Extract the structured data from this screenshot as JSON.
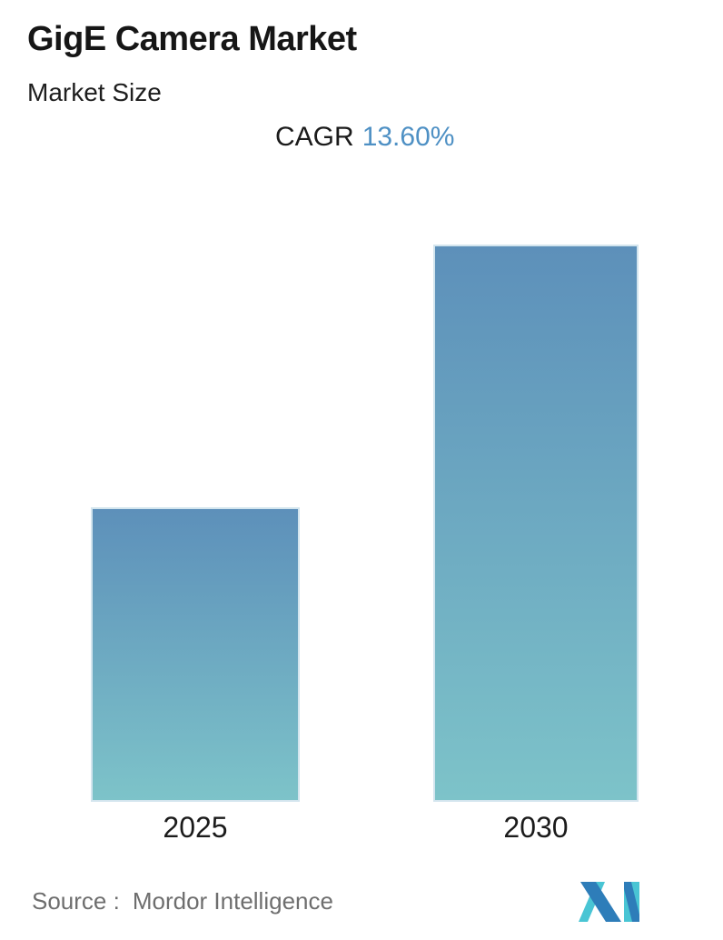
{
  "header": {
    "title": "GigE Camera Market",
    "subtitle": "Market Size",
    "cagr_label": "CAGR",
    "cagr_value": "13.60%"
  },
  "chart_data": {
    "type": "bar",
    "title": "GigE Camera Market - Market Size",
    "categories": [
      "2025",
      "2030"
    ],
    "values": [
      1.0,
      1.89
    ],
    "value_note": "relative bar heights only; no y-axis or numeric data labels shown, 2030 is ~1.89x the 2025 bar implying CAGR 13.60%",
    "cagr_percent": 13.6,
    "xlabel": "",
    "ylabel": "",
    "grid": false,
    "legend": false,
    "bar_colors": {
      "top": "#5d90ba",
      "bottom": "#7dc3c9",
      "edge": "#d3e5ee"
    }
  },
  "footer": {
    "source_label": "Source :",
    "source_value": "Mordor Intelligence",
    "logo": "mordor-intelligence-logo"
  },
  "colors": {
    "accent_value_blue": "#4e90c4",
    "text_dark": "#1b1b1b",
    "text_gray": "#6e6e6e",
    "logo_blue": "#2e7db9",
    "logo_teal": "#49c5d4"
  }
}
